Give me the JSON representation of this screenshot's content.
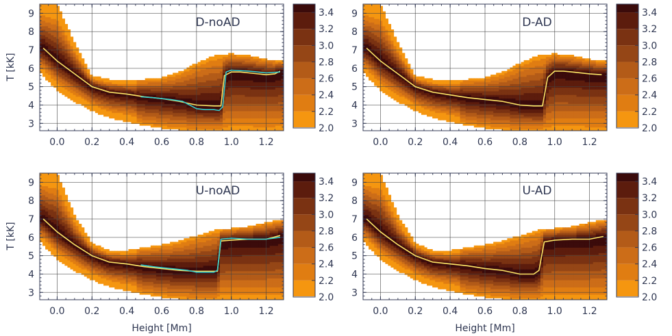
{
  "figure": {
    "xlabel": "Height [Mm]",
    "ylabel": "T [kK]"
  },
  "colorbar": {
    "ticks": [
      "3.4",
      "3.2",
      "3.0",
      "2.8",
      "2.6",
      "2.4",
      "2.2",
      "2.0"
    ],
    "levels": [
      3.5,
      3.4,
      3.2,
      3.0,
      2.8,
      2.6,
      2.4,
      2.2,
      2.0
    ],
    "colors": [
      "#3b0b0b",
      "#5c1c0d",
      "#7a3212",
      "#954616",
      "#b35b18",
      "#cc6d18",
      "#e07d12",
      "#f59610",
      "#ffffff"
    ]
  },
  "chart_data": [
    {
      "type": "heatmap",
      "title": "D-noAD",
      "xlabel": "",
      "ylabel": "T [kK]",
      "xlim": [
        -0.1,
        1.3
      ],
      "ylim": [
        2.6,
        9.5
      ],
      "xticks": [
        "0.0",
        "0.2",
        "0.4",
        "0.6",
        "0.8",
        "1.0",
        "1.2"
      ],
      "yticks": [
        "3",
        "4",
        "5",
        "6",
        "7",
        "8",
        "9"
      ],
      "series": [
        {
          "color": "#ffe666",
          "x": [
            -0.08,
            0.0,
            0.1,
            0.2,
            0.3,
            0.4,
            0.5,
            0.6,
            0.7,
            0.8,
            0.9,
            0.94,
            0.96,
            1.0,
            1.05,
            1.1,
            1.2,
            1.25,
            1.28
          ],
          "y": [
            7.1,
            6.4,
            5.7,
            5.0,
            4.7,
            4.6,
            4.45,
            4.35,
            4.2,
            4.0,
            3.95,
            3.95,
            5.6,
            5.8,
            5.8,
            5.75,
            5.65,
            5.7,
            5.85
          ]
        },
        {
          "color": "#33cccc",
          "x": [
            0.48,
            0.55,
            0.65,
            0.72,
            0.8,
            0.85,
            0.9,
            0.93,
            0.95,
            0.97,
            1.0,
            1.1,
            1.2,
            1.28
          ],
          "y": [
            4.45,
            4.4,
            4.3,
            4.2,
            3.8,
            3.75,
            3.75,
            3.7,
            3.9,
            5.8,
            5.9,
            5.85,
            5.75,
            5.8
          ]
        }
      ],
      "envelope": {
        "x": [
          -0.1,
          0.0,
          0.1,
          0.2,
          0.3,
          0.4,
          0.5,
          0.6,
          0.7,
          0.8,
          0.9,
          1.0,
          1.1,
          1.2,
          1.3
        ],
        "upper": [
          9.5,
          9.5,
          7.4,
          5.6,
          5.4,
          5.35,
          5.4,
          5.5,
          5.8,
          6.3,
          6.7,
          6.8,
          6.7,
          6.5,
          6.4
        ],
        "lower": [
          5.8,
          4.8,
          4.2,
          3.7,
          3.3,
          3.1,
          2.9,
          2.75,
          2.65,
          2.6,
          2.6,
          2.6,
          2.6,
          2.6,
          2.6
        ]
      }
    },
    {
      "type": "heatmap",
      "title": "D-AD",
      "xlabel": "",
      "ylabel": "",
      "xlim": [
        -0.1,
        1.3
      ],
      "ylim": [
        2.6,
        9.5
      ],
      "xticks": [
        "0.0",
        "0.2",
        "0.4",
        "0.6",
        "0.8",
        "1.0",
        "1.2"
      ],
      "yticks": [
        "3",
        "4",
        "5",
        "6",
        "7",
        "8",
        "9"
      ],
      "series": [
        {
          "color": "#ffe666",
          "x": [
            -0.08,
            0.0,
            0.1,
            0.2,
            0.3,
            0.4,
            0.5,
            0.6,
            0.7,
            0.8,
            0.88,
            0.93,
            0.96,
            1.0,
            1.05,
            1.1,
            1.2,
            1.27
          ],
          "y": [
            7.1,
            6.4,
            5.7,
            5.0,
            4.7,
            4.55,
            4.4,
            4.3,
            4.2,
            4.0,
            3.95,
            3.95,
            5.5,
            5.85,
            5.85,
            5.8,
            5.7,
            5.65
          ]
        }
      ],
      "envelope": {
        "x": [
          -0.1,
          0.0,
          0.1,
          0.2,
          0.3,
          0.4,
          0.5,
          0.6,
          0.7,
          0.8,
          0.9,
          1.0,
          1.1,
          1.2,
          1.3
        ],
        "upper": [
          9.5,
          9.5,
          7.4,
          5.6,
          5.4,
          5.35,
          5.4,
          5.5,
          5.8,
          6.3,
          6.7,
          6.8,
          6.7,
          6.5,
          6.4
        ],
        "lower": [
          5.8,
          4.8,
          4.2,
          3.7,
          3.3,
          3.1,
          2.9,
          2.75,
          2.65,
          2.6,
          2.6,
          2.6,
          2.6,
          2.6,
          2.6
        ]
      }
    },
    {
      "type": "heatmap",
      "title": "U-noAD",
      "xlabel": "Height [Mm]",
      "ylabel": "T [kK]",
      "xlim": [
        -0.1,
        1.3
      ],
      "ylim": [
        2.6,
        9.5
      ],
      "xticks": [
        "0.0",
        "0.2",
        "0.4",
        "0.6",
        "0.8",
        "1.0",
        "1.2"
      ],
      "yticks": [
        "3",
        "4",
        "5",
        "6",
        "7",
        "8",
        "9"
      ],
      "series": [
        {
          "color": "#ffe666",
          "x": [
            -0.08,
            0.0,
            0.1,
            0.2,
            0.3,
            0.4,
            0.5,
            0.6,
            0.7,
            0.8,
            0.88,
            0.92,
            0.94,
            1.0,
            1.1,
            1.2,
            1.28
          ],
          "y": [
            7.0,
            6.3,
            5.6,
            5.0,
            4.65,
            4.55,
            4.4,
            4.3,
            4.2,
            4.15,
            4.15,
            4.15,
            5.8,
            5.85,
            5.9,
            5.9,
            6.1
          ]
        },
        {
          "color": "#33cccc",
          "x": [
            0.48,
            0.55,
            0.65,
            0.75,
            0.8,
            0.9,
            0.92,
            0.94,
            1.0,
            1.1,
            1.2,
            1.28
          ],
          "y": [
            4.5,
            4.4,
            4.3,
            4.2,
            4.1,
            4.1,
            4.2,
            5.9,
            5.95,
            5.9,
            5.9,
            6.0
          ]
        }
      ],
      "envelope": {
        "x": [
          -0.1,
          0.0,
          0.1,
          0.2,
          0.3,
          0.4,
          0.5,
          0.6,
          0.7,
          0.8,
          0.9,
          1.0,
          1.1,
          1.2,
          1.3
        ],
        "upper": [
          9.5,
          9.5,
          7.2,
          5.7,
          5.3,
          5.3,
          5.45,
          5.6,
          5.8,
          6.1,
          6.4,
          6.5,
          6.6,
          6.8,
          7.0
        ],
        "lower": [
          5.8,
          4.8,
          4.2,
          3.7,
          3.3,
          3.1,
          2.9,
          2.75,
          2.65,
          2.6,
          2.6,
          2.6,
          2.6,
          2.6,
          2.6
        ]
      }
    },
    {
      "type": "heatmap",
      "title": "U-AD",
      "xlabel": "Height [Mm]",
      "ylabel": "",
      "xlim": [
        -0.1,
        1.3
      ],
      "ylim": [
        2.6,
        9.5
      ],
      "xticks": [
        "0.0",
        "0.2",
        "0.4",
        "0.6",
        "0.8",
        "1.0",
        "1.2"
      ],
      "yticks": [
        "3",
        "4",
        "5",
        "6",
        "7",
        "8",
        "9"
      ],
      "series": [
        {
          "color": "#ffe666",
          "x": [
            -0.08,
            0.0,
            0.1,
            0.2,
            0.3,
            0.4,
            0.5,
            0.6,
            0.7,
            0.8,
            0.88,
            0.91,
            0.94,
            1.0,
            1.1,
            1.2,
            1.28
          ],
          "y": [
            7.0,
            6.3,
            5.6,
            5.0,
            4.65,
            4.55,
            4.45,
            4.3,
            4.2,
            4.0,
            4.0,
            4.2,
            5.75,
            5.85,
            5.9,
            5.9,
            6.05
          ]
        }
      ],
      "envelope": {
        "x": [
          -0.1,
          0.0,
          0.1,
          0.2,
          0.3,
          0.4,
          0.5,
          0.6,
          0.7,
          0.8,
          0.9,
          1.0,
          1.1,
          1.2,
          1.3
        ],
        "upper": [
          9.5,
          9.5,
          7.2,
          5.7,
          5.3,
          5.3,
          5.45,
          5.6,
          5.8,
          6.1,
          6.4,
          6.5,
          6.6,
          6.8,
          7.0
        ],
        "lower": [
          5.8,
          4.8,
          4.2,
          3.7,
          3.3,
          3.1,
          2.9,
          2.75,
          2.65,
          2.6,
          2.6,
          2.6,
          2.6,
          2.6,
          2.6
        ]
      }
    }
  ]
}
